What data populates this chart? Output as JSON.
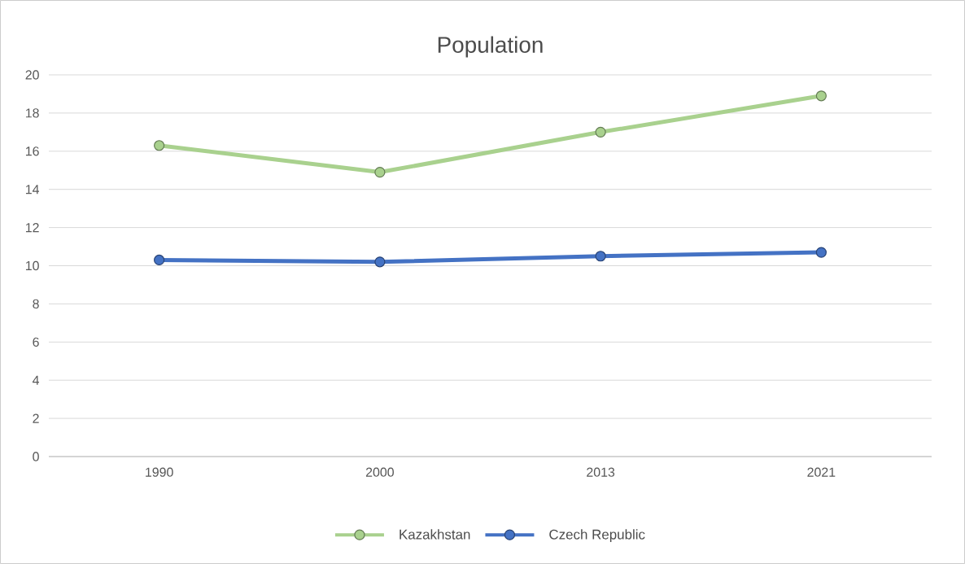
{
  "chart_data": {
    "type": "line",
    "title": "Population",
    "categories": [
      "1990",
      "2000",
      "2013",
      "2021"
    ],
    "series": [
      {
        "name": "Kazakhstan",
        "color": "#a9d18e",
        "values": [
          16.3,
          14.9,
          17.0,
          18.9
        ]
      },
      {
        "name": "Czech Republic",
        "color": "#4472c4",
        "values": [
          10.3,
          10.2,
          10.5,
          10.7
        ]
      }
    ],
    "ylim": [
      0,
      20
    ],
    "yticks": [
      0,
      2,
      4,
      6,
      8,
      10,
      12,
      14,
      16,
      18,
      20
    ],
    "grid": "y",
    "legend": "bottom",
    "marker": "circle",
    "line_style": "solid"
  }
}
